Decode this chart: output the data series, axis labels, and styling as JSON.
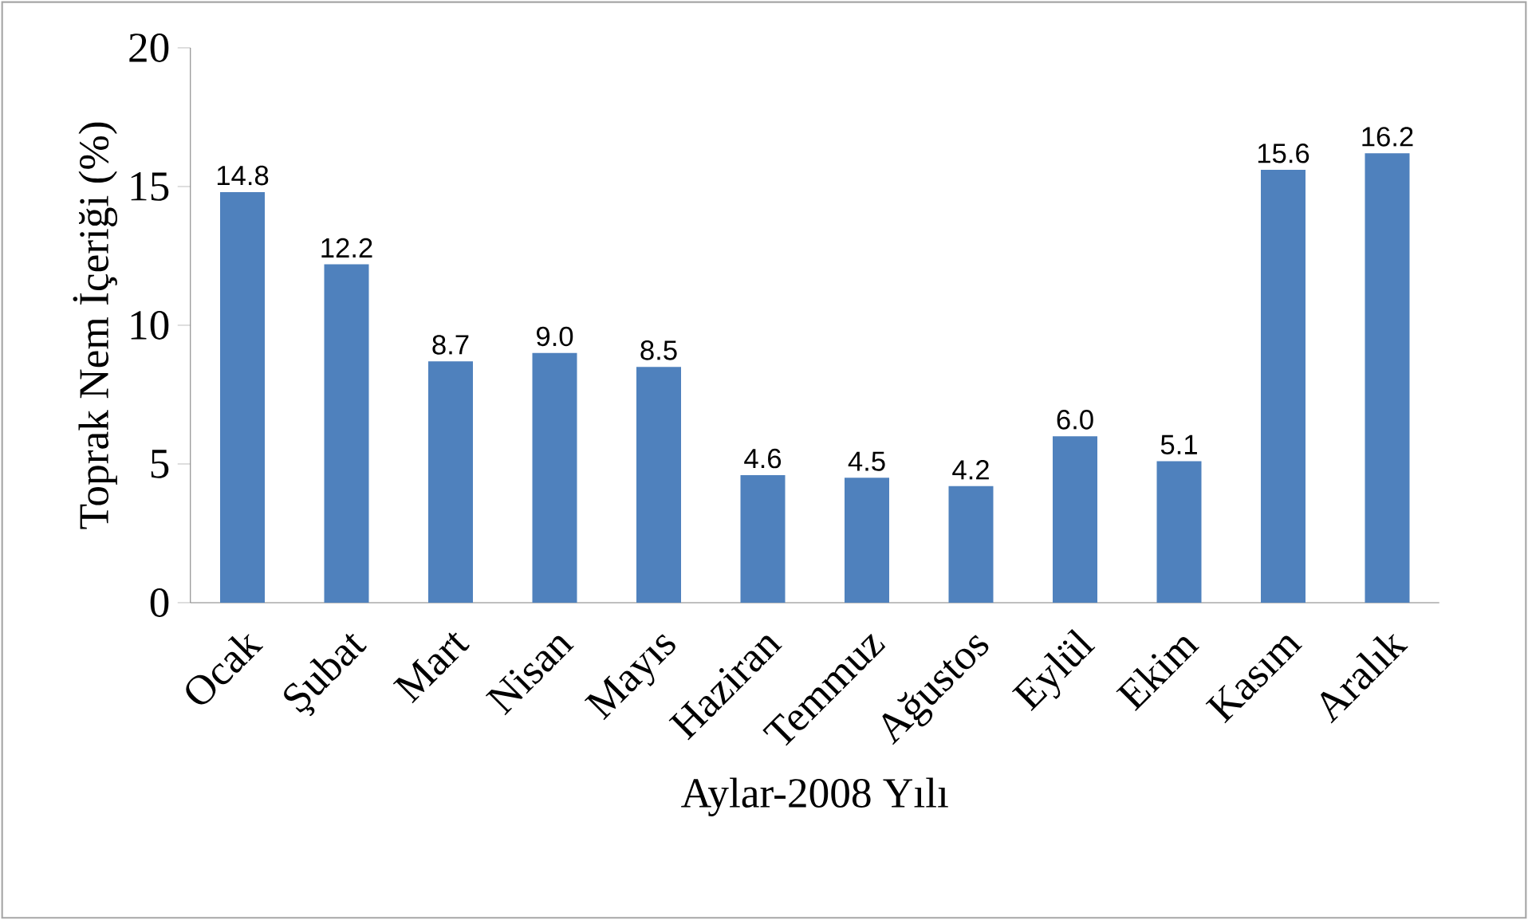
{
  "chart_data": {
    "type": "bar",
    "xlabel": "Aylar-2008 Yılı",
    "ylabel": "Toprak Nem İçeriği (%)",
    "categories": [
      "Ocak",
      "Şubat",
      "Mart",
      "Nisan",
      "Mayıs",
      "Haziran",
      "Temmuz",
      "Ağustos",
      "Eylül",
      "Ekim",
      "Kasım",
      "Aralık"
    ],
    "values": [
      14.8,
      12.2,
      8.7,
      9.0,
      8.5,
      4.6,
      4.5,
      4.2,
      6.0,
      5.1,
      15.6,
      16.2
    ],
    "value_labels": [
      "14.8",
      "12.2",
      "8.7",
      "9.0",
      "8.5",
      "4.6",
      "4.5",
      "4.2",
      "6.0",
      "5.1",
      "15.6",
      "16.2"
    ],
    "color": "#4f81bd",
    "ylim": [
      0,
      20
    ],
    "yticks": [
      0,
      5,
      10,
      15,
      20
    ]
  }
}
